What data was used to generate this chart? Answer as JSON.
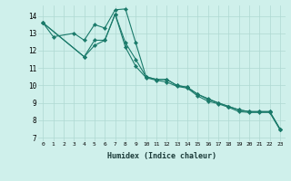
{
  "xlabel": "Humidex (Indice chaleur)",
  "background_color": "#cff0eb",
  "grid_color": "#aed8d2",
  "line_color": "#1a7a6a",
  "xlim": [
    -0.5,
    23.5
  ],
  "ylim": [
    6.8,
    14.6
  ],
  "yticks": [
    7,
    8,
    9,
    10,
    11,
    12,
    13,
    14
  ],
  "xticks": [
    0,
    1,
    2,
    3,
    4,
    5,
    6,
    7,
    8,
    9,
    10,
    11,
    12,
    13,
    14,
    15,
    16,
    17,
    18,
    19,
    20,
    21,
    22,
    23
  ],
  "series1_x": [
    0,
    1,
    3,
    4,
    5,
    6,
    7,
    8,
    9,
    10,
    11,
    12,
    13,
    14,
    15,
    16,
    17,
    18,
    19,
    20,
    21,
    22,
    23
  ],
  "series1_y": [
    13.6,
    12.8,
    13.0,
    12.6,
    13.5,
    13.3,
    14.35,
    14.4,
    12.45,
    10.5,
    10.35,
    10.35,
    10.0,
    9.9,
    9.5,
    9.25,
    9.0,
    8.8,
    8.6,
    8.5,
    8.5,
    8.5,
    7.5
  ],
  "series2_x": [
    0,
    4,
    5,
    6,
    7,
    8,
    9,
    10,
    11,
    12,
    13,
    14,
    15,
    16,
    17,
    18,
    19,
    20,
    21,
    22,
    23
  ],
  "series2_y": [
    13.6,
    11.65,
    12.6,
    12.6,
    14.1,
    12.45,
    11.5,
    10.5,
    10.35,
    10.35,
    10.0,
    9.9,
    9.5,
    9.2,
    9.0,
    8.8,
    8.6,
    8.5,
    8.5,
    8.5,
    7.5
  ],
  "series3_x": [
    0,
    4,
    5,
    6,
    7,
    8,
    9,
    10,
    11,
    12,
    13,
    14,
    15,
    16,
    17,
    18,
    19,
    20,
    21,
    22,
    23
  ],
  "series3_y": [
    13.6,
    11.65,
    12.3,
    12.6,
    14.1,
    12.2,
    11.1,
    10.45,
    10.3,
    10.2,
    9.95,
    9.85,
    9.4,
    9.1,
    8.95,
    8.75,
    8.5,
    8.45,
    8.45,
    8.45,
    7.45
  ]
}
